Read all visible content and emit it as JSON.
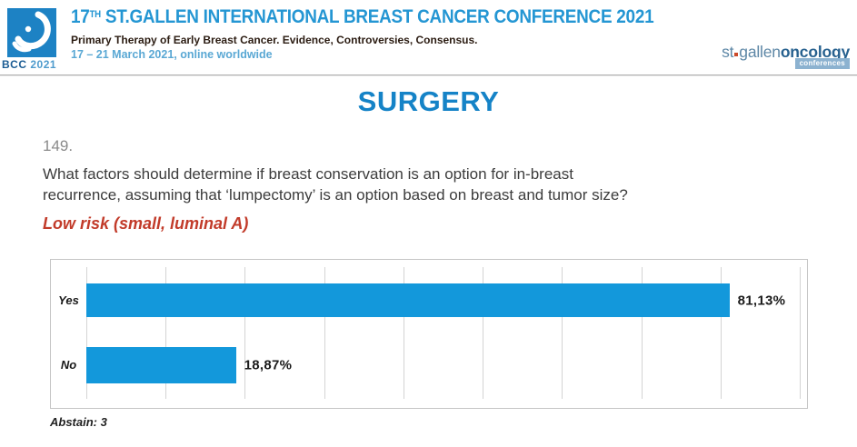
{
  "header": {
    "logo": {
      "bcc": "BCC",
      "year": "2021"
    },
    "title": {
      "num": "17",
      "sup": "TH",
      "rest": " ST.GALLEN INTERNATIONAL BREAST CANCER CONFERENCE 2021"
    },
    "subtitle": "Primary Therapy of Early Breast Cancer. Evidence, Controversies, Consensus.",
    "date_line": "17 – 21 March 2021, online worldwide",
    "brand": {
      "st": "st",
      "gallen": "gallen",
      "oncology": "oncology",
      "badge": "conferences"
    }
  },
  "section_title": "SURGERY",
  "question": {
    "number": "149.",
    "line1": "What factors should determine if breast conservation is an option for in-breast",
    "line2": "recurrence, assuming that ‘lumpectomy’ is an option based on breast and tumor size?",
    "highlight": "Low risk (small, luminal A)"
  },
  "chart_data": {
    "type": "bar",
    "orientation": "horizontal",
    "title": "",
    "categories": [
      "Yes",
      "No"
    ],
    "values": [
      81.13,
      18.87
    ],
    "value_labels": [
      "81,13%",
      "18,87%"
    ],
    "xlim": [
      0,
      90
    ],
    "gridline_step": 10,
    "grid": true,
    "bar_color": "#1398db"
  },
  "footer_note": "Abstain: 3",
  "colors": {
    "accent_blue": "#1583c7",
    "header_blue": "#2496d3",
    "bar_blue": "#1398db",
    "highlight_red": "#c23b2a"
  }
}
